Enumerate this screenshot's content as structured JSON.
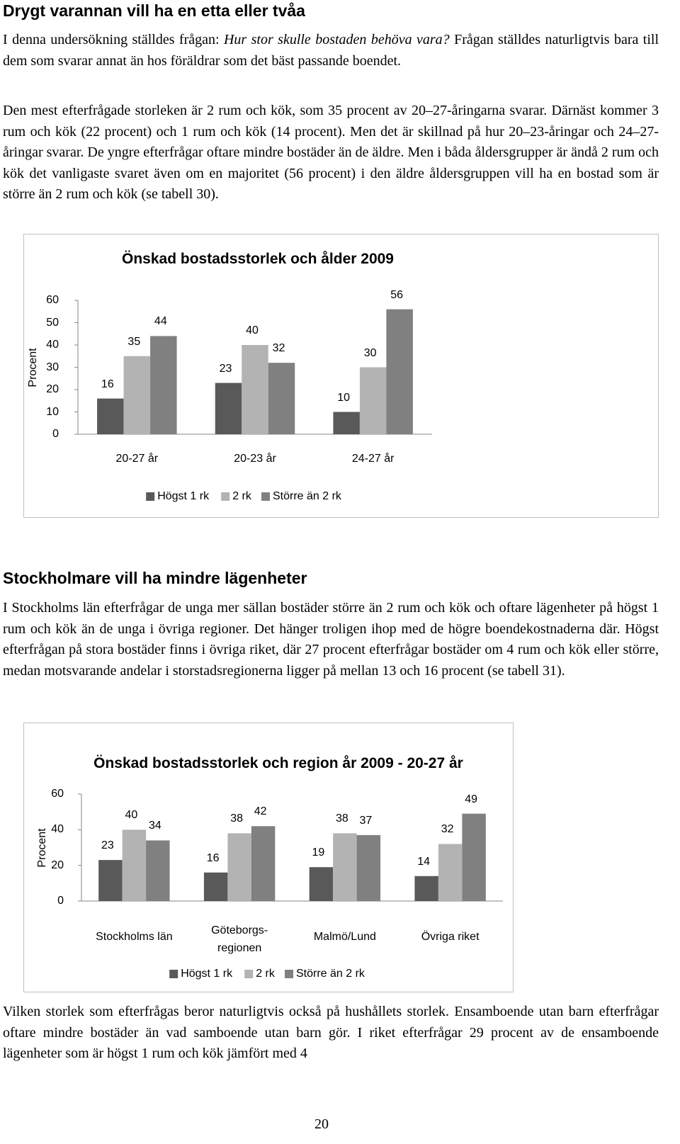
{
  "heading_1": "Drygt varannan vill ha en etta eller tvåa",
  "paragraph_1": [
    "I denna undersökning ställdes frågan:",
    "Hur stor skulle bostaden behöva vara?",
    "Frågan ställdes naturligtvis bara till dem som svarar annat än hos föräldrar som det bäst passande boendet."
  ],
  "paragraph_2": "Den mest efterfrågade storleken är 2 rum och kök, som 35 procent av 20–27-åringarna svarar. Därnäst kommer 3 rum och kök (22 procent) och 1 rum och kök (14 procent). Men det är skillnad på hur 20–23-åringar och 24–27-åringar svarar. De yngre efterfrågar oftare mindre bostäder än de äldre. Men i båda åldersgrupper är ändå 2 rum och kök det vanligaste svaret även om en majoritet (56 procent) i den äldre åldersgruppen vill ha en bostad som är större än 2 rum och kök (se tabell 30).",
  "heading_2": "Stockholmare vill ha mindre lägenheter",
  "paragraph_3": "I Stockholms län efterfrågar de unga mer sällan bostäder större än 2 rum och kök och oftare lägenheter på högst 1 rum och kök än de unga i övriga regioner. Det hänger troligen ihop med de högre boendekostnaderna där. Högst efterfrågan på stora bostäder finns i övriga riket, där 27 procent efterfrågar bostäder om 4 rum och kök eller större, medan motsvarande andelar i storstadsregionerna ligger på mellan 13 och 16 procent (se tabell 31).",
  "paragraph_4": "Vilken storlek som efterfrågas beror naturligtvis också på hushållets storlek. Ensamboende utan barn efterfrågar oftare mindre bostäder än vad samboende utan barn gör. I riket efterfrågar 29 procent av de ensamboende lägenheter som är högst 1 rum och kök jämfört med 4",
  "page_number": "20",
  "chart_data": [
    {
      "type": "bar",
      "title": "Önskad bostadsstorlek och ålder 2009",
      "y_label": "Procent",
      "categories": [
        "20-27 år",
        "20-23 år",
        "24-27 år"
      ],
      "series": [
        {
          "name": "Högst 1 rk",
          "color": "#595959",
          "values": [
            16,
            23,
            10
          ]
        },
        {
          "name": "2 rk",
          "color": "#b3b3b3",
          "values": [
            35,
            40,
            30
          ]
        },
        {
          "name": "Större än 2 rk",
          "color": "#808080",
          "values": [
            44,
            32,
            56
          ]
        }
      ],
      "ylim": [
        0,
        60
      ],
      "yticks": [
        0,
        10,
        20,
        30,
        40,
        50,
        60
      ],
      "grid": false,
      "legend": "bottom"
    },
    {
      "type": "bar",
      "title": "Önskad bostadsstorlek och region år 2009 - 20-27 år",
      "y_label": "Procent",
      "categories": [
        "Stockholms län",
        "Göteborgs-regionen",
        "Malmö/Lund",
        "Övriga riket"
      ],
      "series": [
        {
          "name": "Högst 1 rk",
          "color": "#595959",
          "values": [
            23,
            16,
            19,
            14
          ]
        },
        {
          "name": "2 rk",
          "color": "#b3b3b3",
          "values": [
            40,
            38,
            38,
            32
          ]
        },
        {
          "name": "Större än 2 rk",
          "color": "#808080",
          "values": [
            34,
            42,
            37,
            49
          ]
        }
      ],
      "ylim": [
        0,
        60
      ],
      "yticks": [
        0,
        20,
        40,
        60
      ],
      "grid": false,
      "legend": "bottom"
    }
  ]
}
